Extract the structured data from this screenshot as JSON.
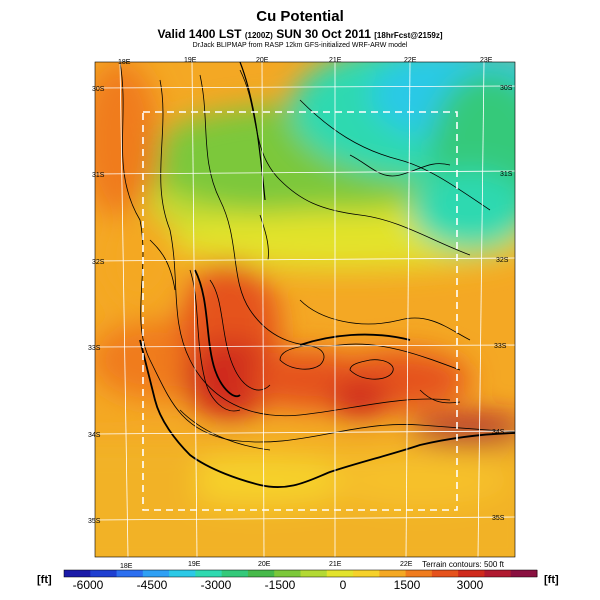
{
  "header": {
    "title": "Cu Potential",
    "subtitle_main": "Valid 1400 LST",
    "subtitle_utc": "(1200Z)",
    "subtitle_date": "SUN 30 Oct 2011",
    "subtitle_fcst": "[18hrFcst@2159z]",
    "credit": "DrJack BLIPMAP from RASP 12km GFS-initialized WRF-ARW model"
  },
  "map": {
    "lon_labels_top": [
      "18E",
      "19E",
      "20E",
      "21E",
      "22E",
      "23E"
    ],
    "lon_labels_bottom": [
      "18E",
      "19E",
      "20E",
      "21E",
      "22E"
    ],
    "lat_labels_left": [
      "30S",
      "31S",
      "32S",
      "33S",
      "34S",
      "35S"
    ],
    "lat_labels_right": [
      "30S",
      "31S",
      "32S",
      "33S",
      "34S",
      "35S"
    ],
    "terrain_note": "Terrain contours: 500 ft"
  },
  "colorbar": {
    "unit": "[ft]",
    "ticks": [
      "-6000",
      "-4500",
      "-3000",
      "-1500",
      "0",
      "1500",
      "3000"
    ],
    "colors": [
      "#1a1aa8",
      "#1f3fd1",
      "#2c6ff0",
      "#2fa0f4",
      "#2cc9e6",
      "#2fd9b0",
      "#34c97a",
      "#47b94a",
      "#7cc83a",
      "#b3d934",
      "#e3e32c",
      "#f6d12a",
      "#f4a824",
      "#f07c1e",
      "#e5521c",
      "#cf2a1c",
      "#b01a30",
      "#8a1040"
    ]
  }
}
